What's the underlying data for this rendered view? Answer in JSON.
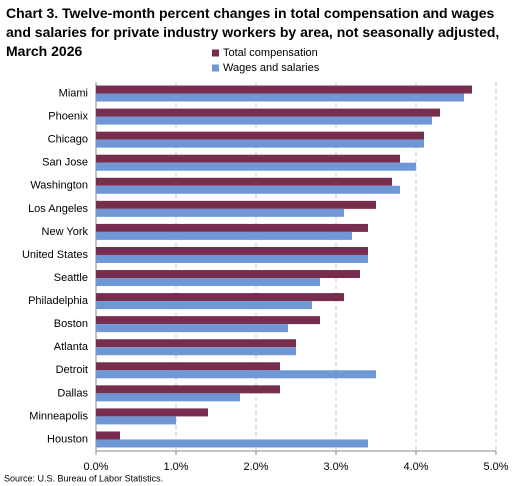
{
  "chart_data": {
    "type": "bar",
    "orientation": "horizontal",
    "title": "Chart 3. Twelve-month percent changes in total compensation and wages and salaries for private industry workers by area, not seasonally adjusted, March 2026",
    "source": "Source: U.S. Bureau of Labor Statistics.",
    "categories": [
      "Miami",
      "Phoenix",
      "Chicago",
      "San Jose",
      "Washington",
      "Los Angeles",
      "New York",
      "United States",
      "Seattle",
      "Philadelphia",
      "Boston",
      "Atlanta",
      "Detroit",
      "Dallas",
      "Minneapolis",
      "Houston"
    ],
    "series": [
      {
        "name": "Total compensation",
        "color": "#772e4e",
        "values": [
          4.7,
          4.3,
          4.1,
          3.8,
          3.7,
          3.5,
          3.4,
          3.4,
          3.3,
          3.1,
          2.8,
          2.5,
          2.3,
          2.3,
          1.4,
          0.3
        ]
      },
      {
        "name": "Wages and salaries",
        "color": "#6f97d6",
        "values": [
          4.6,
          4.2,
          4.1,
          4.0,
          3.8,
          3.1,
          3.2,
          3.4,
          2.8,
          2.7,
          2.4,
          2.5,
          3.5,
          1.8,
          1.0,
          3.4
        ]
      }
    ],
    "xlim": [
      0,
      5
    ],
    "xticks": [
      {
        "value": 0,
        "label": "0.0%"
      },
      {
        "value": 1,
        "label": "1.0%"
      },
      {
        "value": 2,
        "label": "2.0%"
      },
      {
        "value": 3,
        "label": "3.0%"
      },
      {
        "value": 4,
        "label": "4.0%"
      },
      {
        "value": 5,
        "label": "5.0%"
      }
    ],
    "grid": true
  }
}
